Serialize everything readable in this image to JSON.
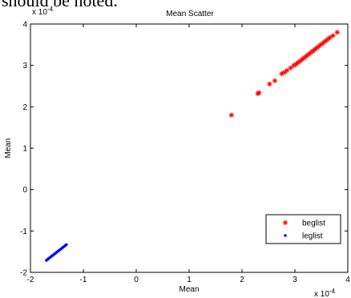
{
  "page_text": "should be noted.",
  "chart_data": {
    "type": "scatter",
    "title": "Mean Scatter",
    "xlabel": "Mean",
    "ylabel": "Mean",
    "x_multiplier": "x 10",
    "x_exponent": "-4",
    "y_multiplier": "x 10",
    "y_exponent": "-4",
    "xlim": [
      -2,
      4
    ],
    "ylim": [
      -2,
      4
    ],
    "x_ticks": [
      -2,
      -1,
      0,
      1,
      2,
      3,
      4
    ],
    "y_ticks": [
      -2,
      -1,
      0,
      1,
      2,
      3,
      4
    ],
    "grid": false,
    "legend_position": "bottom-right",
    "series": [
      {
        "name": "beglist",
        "marker": "asterisk",
        "color": "#ff0000",
        "x": [
          1.8,
          2.3,
          2.32,
          2.52,
          2.62,
          2.75,
          2.8,
          2.85,
          2.92,
          2.98,
          3.02,
          3.06,
          3.1,
          3.14,
          3.18,
          3.22,
          3.26,
          3.3,
          3.34,
          3.38,
          3.42,
          3.46,
          3.5,
          3.54,
          3.58,
          3.62,
          3.66,
          3.72,
          3.8
        ],
        "y": [
          1.8,
          2.32,
          2.34,
          2.55,
          2.63,
          2.8,
          2.83,
          2.88,
          2.94,
          3.0,
          3.03,
          3.07,
          3.11,
          3.15,
          3.19,
          3.23,
          3.27,
          3.31,
          3.35,
          3.39,
          3.43,
          3.47,
          3.51,
          3.55,
          3.59,
          3.63,
          3.67,
          3.72,
          3.8
        ]
      },
      {
        "name": "leglist",
        "marker": "dot",
        "color": "#0000ff",
        "x": [
          -1.7,
          -1.68,
          -1.66,
          -1.64,
          -1.62,
          -1.6,
          -1.58,
          -1.56,
          -1.54,
          -1.52,
          -1.5,
          -1.48,
          -1.46,
          -1.44,
          -1.42,
          -1.4,
          -1.38,
          -1.36,
          -1.34,
          -1.32
        ],
        "y": [
          -1.71,
          -1.69,
          -1.67,
          -1.65,
          -1.63,
          -1.61,
          -1.59,
          -1.57,
          -1.55,
          -1.53,
          -1.51,
          -1.49,
          -1.47,
          -1.45,
          -1.43,
          -1.41,
          -1.39,
          -1.37,
          -1.35,
          -1.33
        ]
      }
    ]
  }
}
